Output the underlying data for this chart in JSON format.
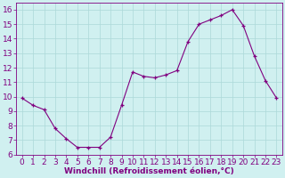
{
  "x": [
    0,
    1,
    2,
    3,
    4,
    5,
    6,
    7,
    8,
    9,
    10,
    11,
    12,
    13,
    14,
    15,
    16,
    17,
    18,
    19,
    20,
    21,
    22,
    23
  ],
  "y": [
    9.9,
    9.4,
    9.1,
    7.8,
    7.1,
    6.5,
    6.5,
    6.5,
    7.2,
    9.4,
    11.7,
    11.4,
    11.3,
    11.5,
    11.8,
    13.8,
    15.0,
    15.3,
    15.6,
    16.0,
    14.9,
    12.8,
    11.1,
    9.9
  ],
  "line_color": "#800080",
  "marker": "+",
  "marker_color": "#800080",
  "bg_color": "#d0f0f0",
  "grid_color": "#acd8d8",
  "xlabel": "Windchill (Refroidissement éolien,°C)",
  "xlim": [
    -0.5,
    23.5
  ],
  "ylim": [
    6,
    16.5
  ],
  "xticks": [
    0,
    1,
    2,
    3,
    4,
    5,
    6,
    7,
    8,
    9,
    10,
    11,
    12,
    13,
    14,
    15,
    16,
    17,
    18,
    19,
    20,
    21,
    22,
    23
  ],
  "yticks": [
    6,
    7,
    8,
    9,
    10,
    11,
    12,
    13,
    14,
    15,
    16
  ],
  "xlabel_fontsize": 6.5,
  "tick_fontsize": 6.5,
  "label_color": "#800080"
}
